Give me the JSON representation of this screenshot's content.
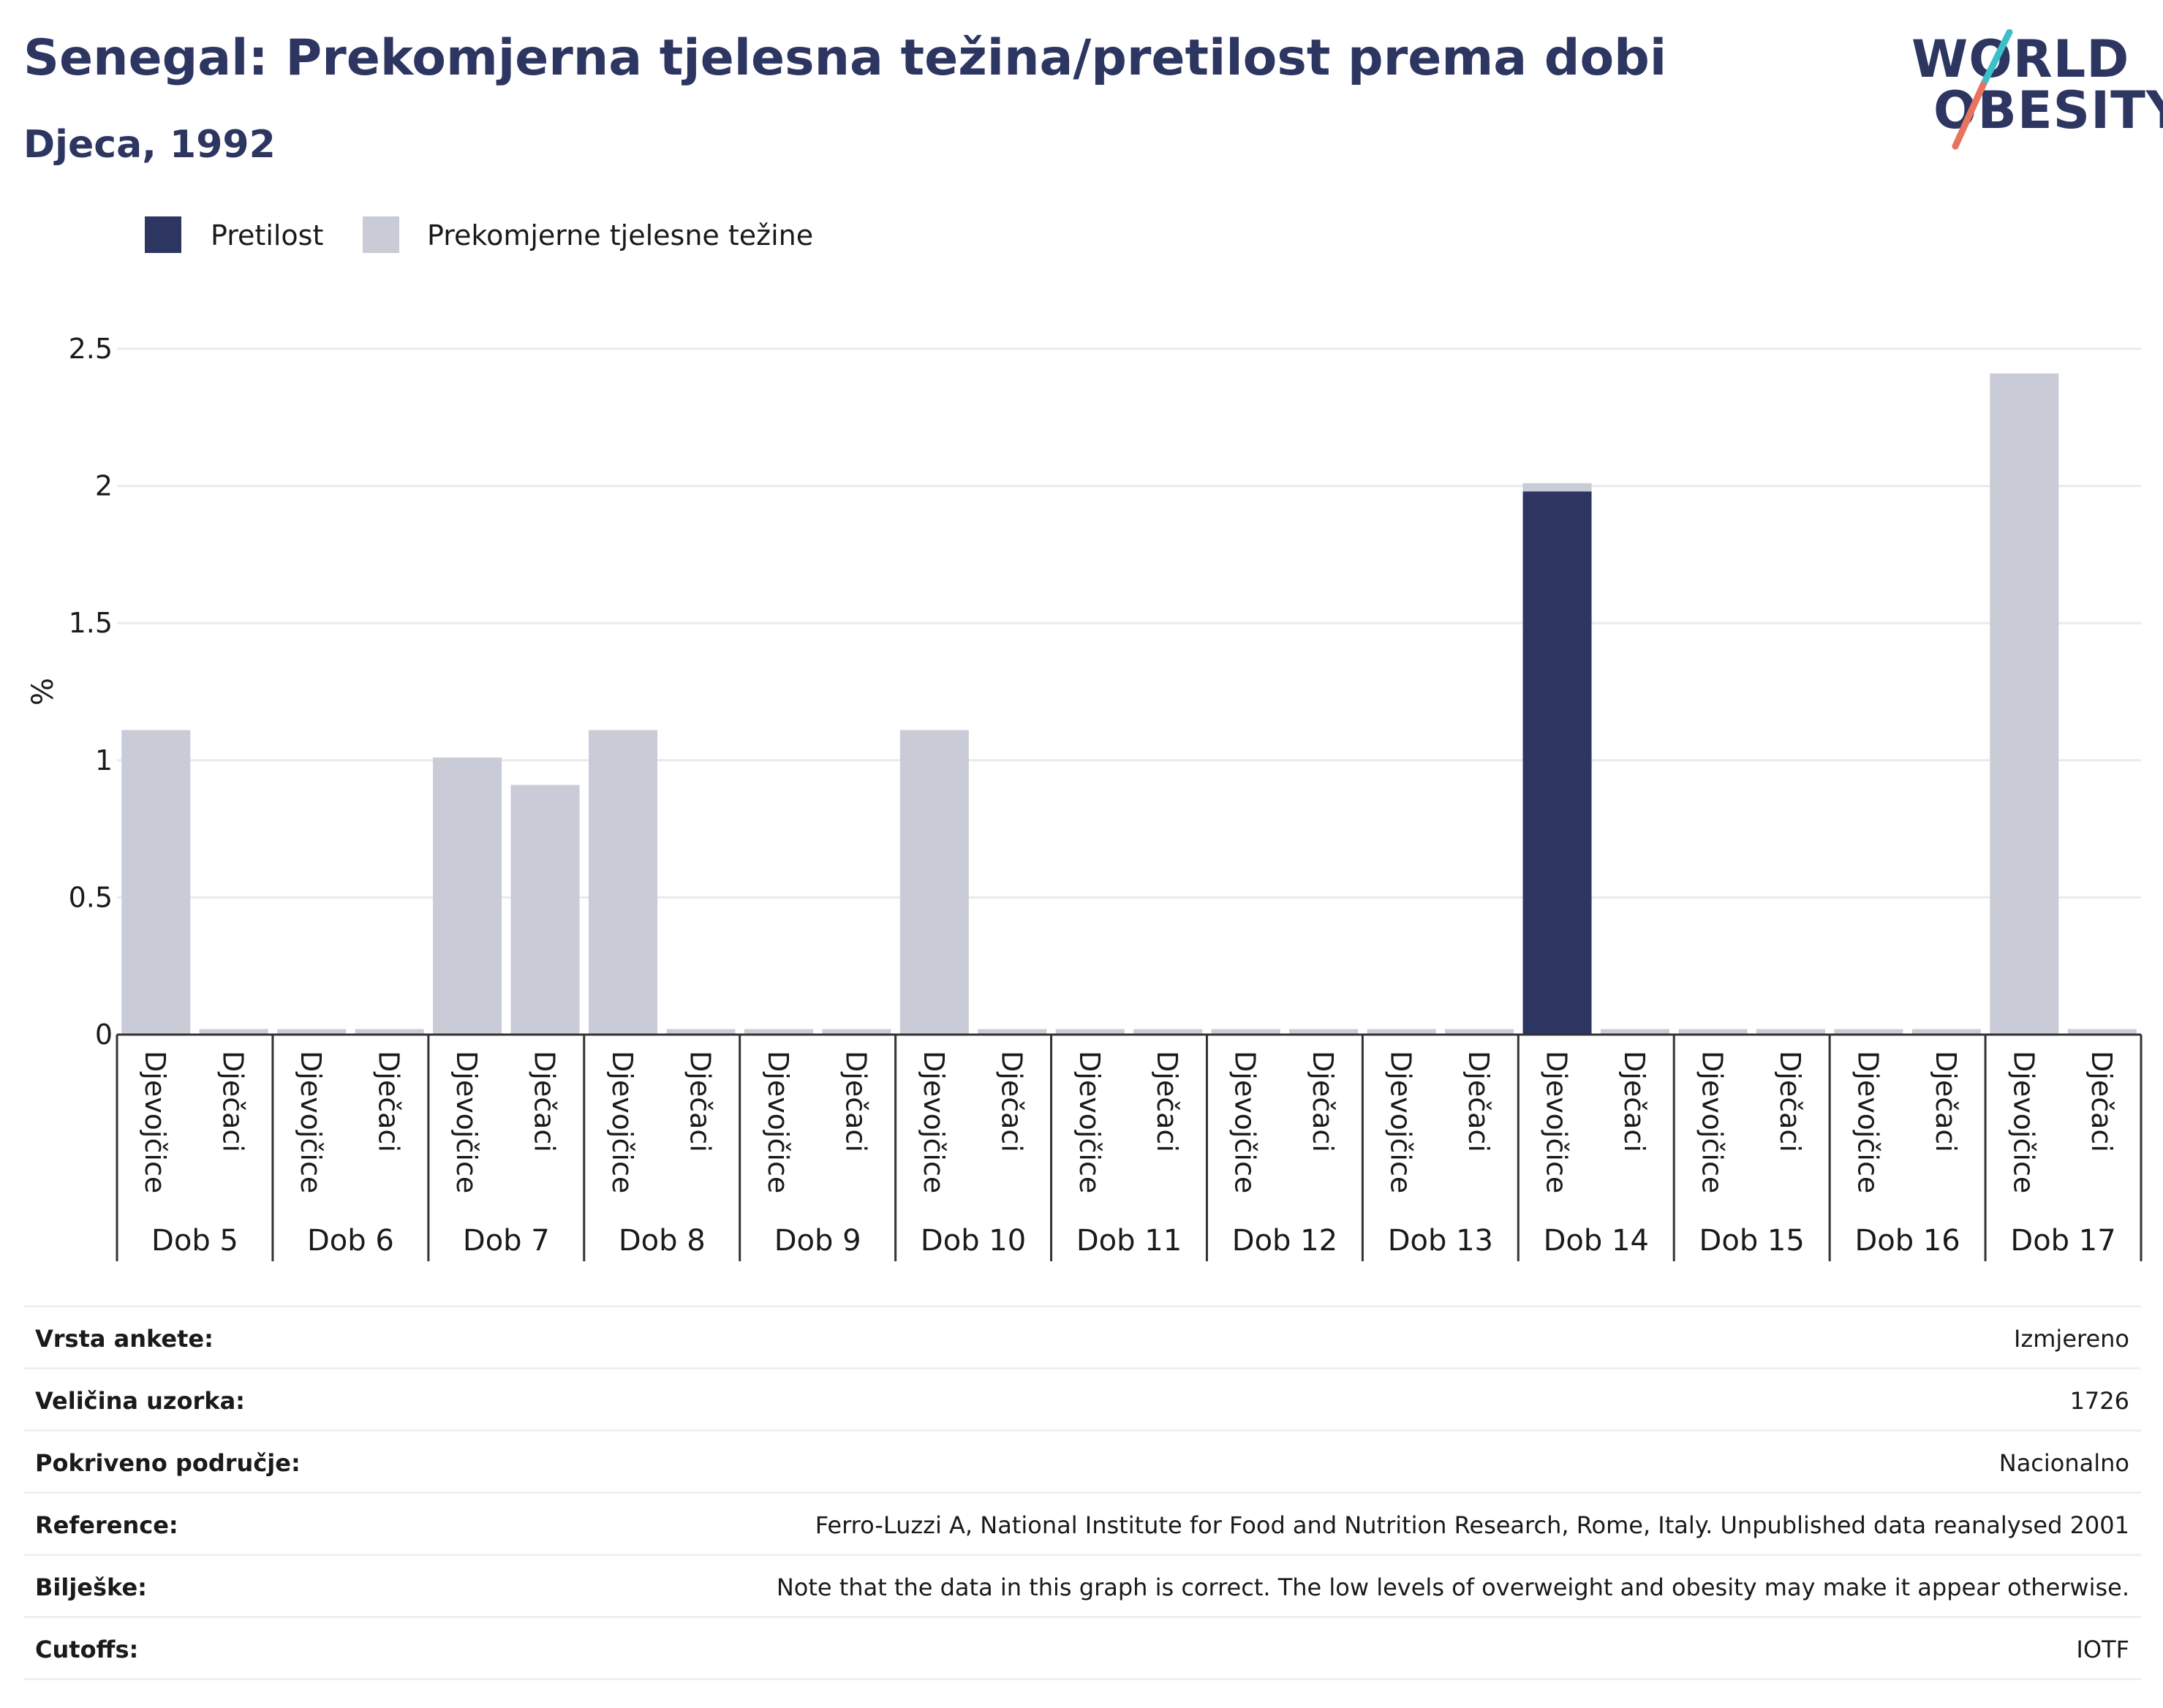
{
  "header": {
    "title": "Senegal: Prekomjerna tjelesna težina/pretilost prema dobi",
    "subtitle": "Djeca, 1992"
  },
  "logo": {
    "line1": "WORLD",
    "line2": "OBESITY",
    "accent_colors": [
      "#3bbfc9",
      "#e8735f"
    ]
  },
  "colors": {
    "obesity": "#2d3561",
    "overweight": "#c9cbd6",
    "grid": "#e8eaee",
    "axis": "#333333"
  },
  "chart_data": {
    "type": "bar",
    "ylabel": "%",
    "ylim": [
      0,
      2.5
    ],
    "yticks": [
      "0",
      "0.5",
      "1",
      "1.5",
      "2",
      "2.5"
    ],
    "ytick_values": [
      0,
      0.5,
      1,
      1.5,
      2,
      2.5
    ],
    "stacked": true,
    "legend_position": "top-left",
    "groups": [
      "Dob 5",
      "Dob 6",
      "Dob 7",
      "Dob 8",
      "Dob 9",
      "Dob 10",
      "Dob 11",
      "Dob 12",
      "Dob 13",
      "Dob 14",
      "Dob 15",
      "Dob 16",
      "Dob 17"
    ],
    "subcategories": [
      "Djevojčice",
      "Dječaci"
    ],
    "series": [
      {
        "name": "Pretilost",
        "color": "#2d3561",
        "values": [
          0,
          0,
          0,
          0,
          0,
          0,
          0,
          0,
          0,
          0,
          0,
          0,
          0,
          0,
          0,
          0,
          0,
          0,
          1.98,
          0,
          0,
          0,
          0,
          0,
          0,
          0
        ]
      },
      {
        "name": "Prekomjerne tjelesne težine",
        "color": "#c9cbd6",
        "values": [
          1.11,
          0.02,
          0.02,
          0.02,
          1.01,
          0.91,
          1.11,
          0.02,
          0.02,
          0.02,
          1.11,
          0.02,
          0.02,
          0.02,
          0.02,
          0.02,
          0.02,
          0.02,
          0.03,
          0.02,
          0.02,
          0.02,
          0.02,
          0.02,
          2.41,
          0.02
        ]
      }
    ]
  },
  "info": [
    {
      "label": "Vrsta ankete:",
      "value": "Izmjereno"
    },
    {
      "label": "Veličina uzorka:",
      "value": "1726"
    },
    {
      "label": "Pokriveno područje:",
      "value": "Nacionalno"
    },
    {
      "label": "Reference:",
      "value": "Ferro-Luzzi A, National Institute for Food and Nutrition Research, Rome, Italy. Unpublished data reanalysed 2001"
    },
    {
      "label": "Bilješke:",
      "value": "Note that the data in this graph is correct. The low levels of overweight and obesity may make it appear otherwise."
    },
    {
      "label": "Cutoffs:",
      "value": "IOTF"
    }
  ]
}
